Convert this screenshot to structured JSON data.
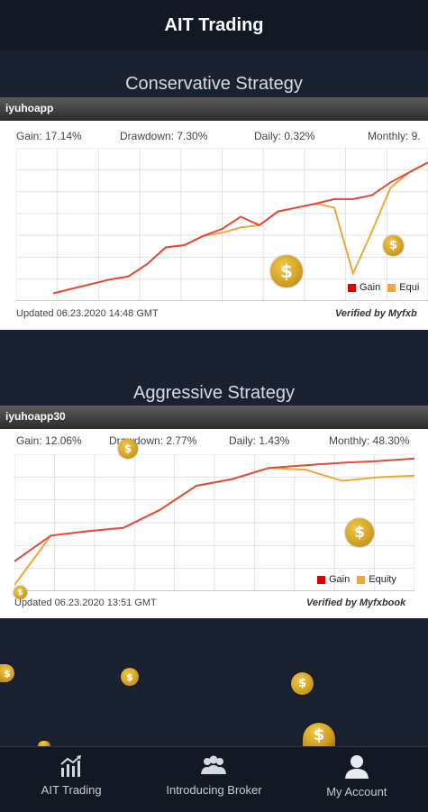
{
  "header": {
    "title": "AIT Trading"
  },
  "sections": [
    {
      "title": "Conservative Strategy",
      "account": "iyuhoapp",
      "stats": {
        "gain": "Gain: 17.14%",
        "drawdown": "Drawdown: 7.30%",
        "daily": "Daily: 0.32%",
        "monthly": "Monthly: 9."
      },
      "updated": "Updated 06.23.2020 14:48 GMT",
      "verified": "Verified by Myfxb",
      "legend": {
        "gain": "Gain",
        "equity": "Equi"
      },
      "chart_data": {
        "type": "line",
        "title": "",
        "series": [
          {
            "name": "Gain",
            "color": "#e34a3b",
            "values": [
              0,
              0.6,
              1.2,
              1.8,
              2.2,
              3.8,
              6.0,
              6.3,
              7.5,
              8.4,
              10.0,
              8.9,
              10.7,
              11.2,
              11.7,
              12.3,
              12.3,
              12.8,
              14.5,
              15.8,
              17.1
            ]
          },
          {
            "name": "Equity",
            "color": "#f0a73a",
            "values": [
              0,
              0.6,
              1.2,
              1.8,
              2.2,
              3.8,
              6.0,
              6.3,
              7.5,
              7.9,
              8.6,
              8.9,
              10.7,
              11.2,
              11.7,
              11.2,
              2.6,
              8.0,
              13.8,
              15.8,
              17.1
            ]
          }
        ],
        "ylim": [
          -1,
          19
        ]
      }
    },
    {
      "title": "Aggressive Strategy",
      "account": "iyuhoapp30",
      "stats": {
        "gain": "Gain: 12.06%",
        "drawdown": "Drawdown: 2.77%",
        "daily": "Daily: 1.43%",
        "monthly": "Monthly: 48.30%"
      },
      "updated": "Updated 06.23.2020 13:51 GMT",
      "verified": "Verified by Myfxbook",
      "legend": {
        "gain": "Gain",
        "equity": "Equity"
      },
      "chart_data": {
        "type": "line",
        "title": "",
        "series": [
          {
            "name": "Gain",
            "color": "#e34a3b",
            "values": [
              0,
              3.0,
              3.5,
              3.9,
              6.0,
              8.8,
              9.6,
              10.9,
              11.2,
              11.5,
              11.7,
              12.0
            ]
          },
          {
            "name": "Equity",
            "color": "#f0a73a",
            "values": [
              -2.8,
              3.0,
              3.5,
              3.9,
              6.0,
              8.8,
              9.6,
              10.9,
              10.7,
              9.4,
              9.8,
              10.0
            ]
          }
        ],
        "ylim": [
          -3.5,
          12.5
        ]
      }
    }
  ],
  "coin_symbol": "$",
  "tabs": [
    {
      "label": "AIT Trading",
      "icon": "chart-icon"
    },
    {
      "label": "Introducing Broker",
      "icon": "group-icon"
    },
    {
      "label": "My Account",
      "icon": "person-icon"
    }
  ]
}
